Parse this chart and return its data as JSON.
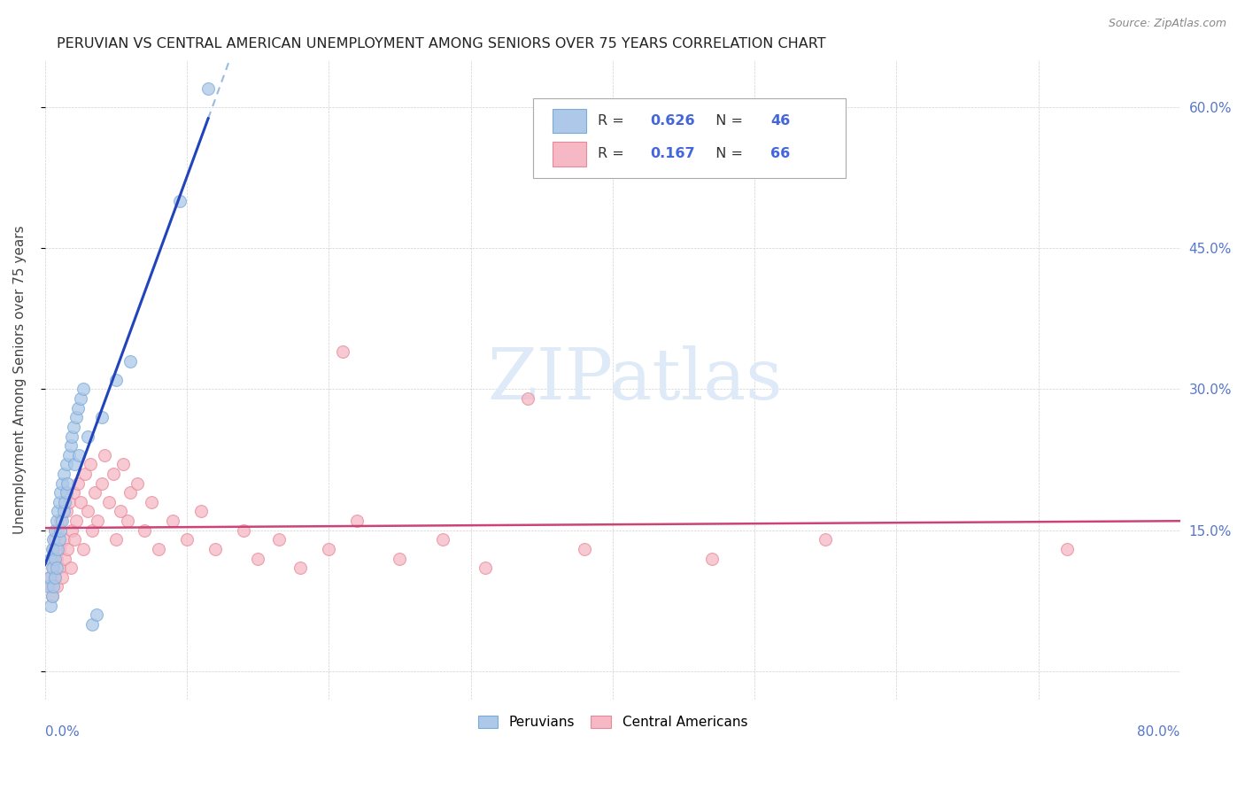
{
  "title": "PERUVIAN VS CENTRAL AMERICAN UNEMPLOYMENT AMONG SENIORS OVER 75 YEARS CORRELATION CHART",
  "source": "Source: ZipAtlas.com",
  "ylabel": "Unemployment Among Seniors over 75 years",
  "xlim": [
    0.0,
    0.8
  ],
  "ylim": [
    -0.03,
    0.65
  ],
  "ytick_vals": [
    0.0,
    0.15,
    0.3,
    0.45,
    0.6
  ],
  "ytick_labels_right": [
    "",
    "15.0%",
    "30.0%",
    "45.0%",
    "60.0%"
  ],
  "peruvian_color": "#adc8e8",
  "peruvian_edge": "#7aabda",
  "central_color": "#f5b8c4",
  "central_edge": "#e88898",
  "line_blue": "#2244bb",
  "line_pink": "#cc4477",
  "line_dash_color": "#99bbdd",
  "watermark_color": "#deeaf7",
  "peruvians_x": [
    0.002,
    0.003,
    0.004,
    0.004,
    0.005,
    0.005,
    0.005,
    0.006,
    0.006,
    0.007,
    0.007,
    0.007,
    0.008,
    0.008,
    0.009,
    0.009,
    0.01,
    0.01,
    0.011,
    0.011,
    0.012,
    0.012,
    0.013,
    0.013,
    0.014,
    0.015,
    0.015,
    0.016,
    0.017,
    0.018,
    0.019,
    0.02,
    0.021,
    0.022,
    0.023,
    0.024,
    0.025,
    0.027,
    0.03,
    0.033,
    0.036,
    0.04,
    0.05,
    0.06,
    0.095,
    0.115
  ],
  "peruvians_y": [
    0.09,
    0.1,
    0.07,
    0.12,
    0.08,
    0.11,
    0.13,
    0.09,
    0.14,
    0.1,
    0.12,
    0.15,
    0.11,
    0.16,
    0.13,
    0.17,
    0.14,
    0.18,
    0.15,
    0.19,
    0.16,
    0.2,
    0.17,
    0.21,
    0.18,
    0.19,
    0.22,
    0.2,
    0.23,
    0.24,
    0.25,
    0.26,
    0.22,
    0.27,
    0.28,
    0.23,
    0.29,
    0.3,
    0.25,
    0.05,
    0.06,
    0.27,
    0.31,
    0.33,
    0.5,
    0.62
  ],
  "central_x": [
    0.003,
    0.004,
    0.005,
    0.005,
    0.006,
    0.006,
    0.007,
    0.007,
    0.008,
    0.008,
    0.009,
    0.01,
    0.01,
    0.011,
    0.012,
    0.013,
    0.014,
    0.015,
    0.016,
    0.017,
    0.018,
    0.019,
    0.02,
    0.021,
    0.022,
    0.023,
    0.025,
    0.027,
    0.028,
    0.03,
    0.032,
    0.033,
    0.035,
    0.037,
    0.04,
    0.042,
    0.045,
    0.048,
    0.05,
    0.053,
    0.055,
    0.058,
    0.06,
    0.065,
    0.07,
    0.075,
    0.08,
    0.09,
    0.1,
    0.11,
    0.12,
    0.14,
    0.15,
    0.165,
    0.18,
    0.2,
    0.22,
    0.25,
    0.28,
    0.31,
    0.34,
    0.38,
    0.21,
    0.47,
    0.55,
    0.72
  ],
  "central_y": [
    0.1,
    0.09,
    0.12,
    0.08,
    0.11,
    0.13,
    0.1,
    0.14,
    0.09,
    0.12,
    0.15,
    0.11,
    0.13,
    0.16,
    0.1,
    0.14,
    0.12,
    0.17,
    0.13,
    0.18,
    0.11,
    0.15,
    0.19,
    0.14,
    0.16,
    0.2,
    0.18,
    0.13,
    0.21,
    0.17,
    0.22,
    0.15,
    0.19,
    0.16,
    0.2,
    0.23,
    0.18,
    0.21,
    0.14,
    0.17,
    0.22,
    0.16,
    0.19,
    0.2,
    0.15,
    0.18,
    0.13,
    0.16,
    0.14,
    0.17,
    0.13,
    0.15,
    0.12,
    0.14,
    0.11,
    0.13,
    0.16,
    0.12,
    0.14,
    0.11,
    0.29,
    0.13,
    0.34,
    0.12,
    0.14,
    0.13
  ]
}
